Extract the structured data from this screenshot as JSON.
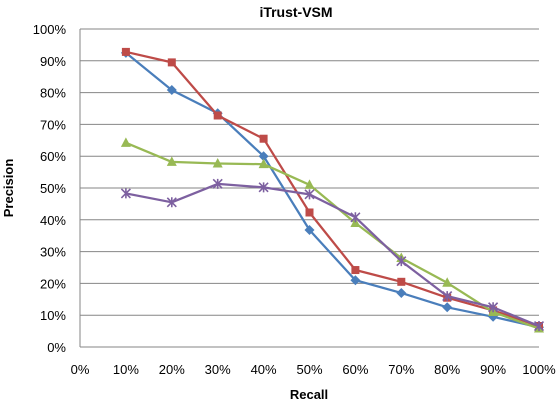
{
  "chart_data": {
    "type": "line",
    "title": "iTrust-VSM",
    "xlabel": "Recall",
    "ylabel": "Precision",
    "x_categories": [
      "0%",
      "10%",
      "20%",
      "30%",
      "40%",
      "50%",
      "60%",
      "70%",
      "80%",
      "90%",
      "100%"
    ],
    "x_values": [
      0,
      10,
      20,
      30,
      40,
      50,
      60,
      70,
      80,
      90,
      100
    ],
    "y_ticks": [
      "0%",
      "10%",
      "20%",
      "30%",
      "40%",
      "50%",
      "60%",
      "70%",
      "80%",
      "90%",
      "100%"
    ],
    "ylim": [
      0,
      100
    ],
    "grid": "horizontal",
    "legend": "none",
    "series": [
      {
        "color": "#4A7EBB",
        "marker": "diamond",
        "x": [
          10,
          20,
          30,
          40,
          50,
          60,
          70,
          80,
          90,
          100
        ],
        "y": [
          92.5,
          80.8,
          73.5,
          60.0,
          36.8,
          21.0,
          17.0,
          12.5,
          9.5,
          6.2
        ]
      },
      {
        "color": "#BE4B48",
        "marker": "square",
        "x": [
          10,
          20,
          30,
          40,
          50,
          60,
          70,
          80,
          90,
          100
        ],
        "y": [
          92.8,
          89.5,
          72.8,
          65.5,
          42.3,
          24.2,
          20.5,
          15.5,
          11.5,
          6.6
        ]
      },
      {
        "color": "#98B954",
        "marker": "triangle",
        "x": [
          10,
          20,
          30,
          40,
          50,
          60,
          70,
          80,
          90,
          100
        ],
        "y": [
          64.2,
          58.2,
          57.7,
          57.5,
          51.0,
          39.0,
          28.0,
          20.2,
          11.0,
          5.8
        ]
      },
      {
        "color": "#7D60A0",
        "marker": "star",
        "x": [
          10,
          20,
          30,
          40,
          50,
          60,
          70,
          80,
          90,
          100
        ],
        "y": [
          48.3,
          45.5,
          51.3,
          50.2,
          48.0,
          40.8,
          27.0,
          16.0,
          12.5,
          6.6
        ]
      }
    ]
  }
}
